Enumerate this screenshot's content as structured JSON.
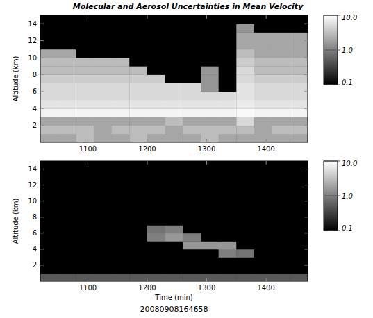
{
  "chart_data": [
    {
      "type": "heatmap",
      "title": "Molecular and Aerosol Uncertainties in Mean Velocity",
      "ylabel": "Altitude (km)",
      "xlim": [
        1020,
        1470
      ],
      "ylim": [
        0,
        15
      ],
      "xticks": [
        1100,
        1200,
        1300,
        1400
      ],
      "yticks": [
        2,
        4,
        6,
        8,
        10,
        12,
        14
      ],
      "x_edges": [
        1020,
        1050,
        1080,
        1110,
        1140,
        1170,
        1200,
        1230,
        1260,
        1290,
        1320,
        1350,
        1380,
        1410,
        1440,
        1470
      ],
      "y_edges": [
        0,
        1,
        2,
        3,
        4,
        5,
        6,
        7,
        8,
        9,
        10,
        11,
        12,
        13,
        14,
        15
      ],
      "cells": [
        [
          2,
          2,
          3,
          2,
          2,
          3,
          2,
          2,
          2,
          3,
          2,
          2,
          2,
          2,
          2
        ],
        [
          3,
          3,
          3,
          2,
          3,
          3,
          3,
          2,
          3,
          3,
          3,
          3,
          2,
          3,
          3
        ],
        [
          2,
          2,
          2,
          2,
          2,
          2,
          2,
          3,
          2,
          2,
          2,
          5,
          2,
          2,
          2
        ],
        [
          8,
          8,
          8,
          8,
          8,
          8,
          8,
          8,
          8,
          8,
          8,
          9,
          8,
          8,
          8
        ],
        [
          6,
          6,
          6,
          6,
          6,
          6,
          6,
          6,
          6,
          6,
          6,
          7,
          6,
          6,
          6
        ],
        [
          5,
          5,
          5,
          5,
          5,
          5,
          5,
          5,
          5,
          5,
          5,
          6,
          5,
          5,
          5
        ],
        [
          5,
          5,
          5,
          5,
          5,
          5,
          5,
          5,
          5,
          1.5,
          0.1,
          6,
          5,
          5,
          5
        ],
        [
          4,
          4,
          4,
          4,
          4,
          4,
          4,
          0.1,
          0.1,
          1.5,
          0.1,
          5,
          4,
          4,
          4
        ],
        [
          3,
          3,
          3,
          3,
          3,
          3,
          0.1,
          0.1,
          0.1,
          1.5,
          0.1,
          5,
          3,
          3,
          3
        ],
        [
          3,
          3,
          3,
          3,
          3,
          0.1,
          0.1,
          0.1,
          0.1,
          0.1,
          0.1,
          4,
          3,
          3,
          3
        ],
        [
          2,
          2,
          0.1,
          0.1,
          0.1,
          0.1,
          0.1,
          0.1,
          0.1,
          0.1,
          0.1,
          3,
          2,
          2,
          2
        ],
        [
          0.1,
          0.1,
          0.1,
          0.1,
          0.1,
          0.1,
          0.1,
          0.1,
          0.1,
          0.1,
          0.1,
          2,
          2,
          2,
          2
        ],
        [
          0.1,
          0.1,
          0.1,
          0.1,
          0.1,
          0.1,
          0.1,
          0.1,
          0.1,
          0.1,
          0.1,
          2,
          2,
          2,
          2
        ],
        [
          0.1,
          0.1,
          0.1,
          0.1,
          0.1,
          0.1,
          0.1,
          0.1,
          0.1,
          0.1,
          0.1,
          1.5,
          0.1,
          0.1,
          0.1
        ],
        [
          0.1,
          0.1,
          0.1,
          0.1,
          0.1,
          0.1,
          0.1,
          0.1,
          0.1,
          0.1,
          0.1,
          0.1,
          0.1,
          0.1,
          0.1
        ]
      ],
      "colorbar": {
        "range": [
          0.1,
          10
        ],
        "log": true,
        "ticks": [
          0.1,
          {
            "value": 1,
            "label": "1.0"
          },
          {
            "value": 10,
            "label": "10.0"
          }
        ]
      }
    },
    {
      "type": "heatmap",
      "ylabel": "Altitude (km)",
      "xlabel": "Time (min)",
      "annotation": "20080908164658",
      "xlim": [
        1020,
        1470
      ],
      "ylim": [
        0,
        15
      ],
      "xticks": [
        1100,
        1200,
        1300,
        1400
      ],
      "yticks": [
        2,
        4,
        6,
        8,
        10,
        12,
        14
      ],
      "x_edges": [
        1020,
        1050,
        1080,
        1110,
        1140,
        1170,
        1200,
        1230,
        1260,
        1290,
        1320,
        1350,
        1380,
        1410,
        1440,
        1470
      ],
      "y_edges": [
        0,
        1,
        2,
        3,
        4,
        5,
        6,
        7,
        8,
        9,
        10,
        11,
        12,
        13,
        14,
        15
      ],
      "cells": [
        [
          0.5,
          0.5,
          0.5,
          0.5,
          0.5,
          0.5,
          0.5,
          0.5,
          0.5,
          0.5,
          0.5,
          0.5,
          0.5,
          0.5,
          0.5
        ],
        [
          0.1,
          0.1,
          0.1,
          0.1,
          0.1,
          0.1,
          0.1,
          0.1,
          0.1,
          0.1,
          0.1,
          0.1,
          0.1,
          0.1,
          0.1
        ],
        [
          0.1,
          0.1,
          0.1,
          0.1,
          0.1,
          0.1,
          0.1,
          0.1,
          0.1,
          0.1,
          0.1,
          0.1,
          0.1,
          0.1,
          0.1
        ],
        [
          0.1,
          0.1,
          0.1,
          0.1,
          0.1,
          0.1,
          0.1,
          0.1,
          0.1,
          0.1,
          1,
          0.8,
          0.1,
          0.1,
          0.1
        ],
        [
          0.1,
          0.1,
          0.1,
          0.1,
          0.1,
          0.1,
          0.1,
          0.1,
          1.5,
          1.5,
          1.5,
          0.1,
          0.1,
          0.1,
          0.1
        ],
        [
          0.1,
          0.1,
          0.1,
          0.1,
          0.1,
          0.1,
          1,
          1.5,
          1,
          0.1,
          0.1,
          0.1,
          0.1,
          0.1,
          0.1
        ],
        [
          0.1,
          0.1,
          0.1,
          0.1,
          0.1,
          0.1,
          0.8,
          1,
          0.1,
          0.1,
          0.1,
          0.1,
          0.1,
          0.1,
          0.1
        ],
        [
          0.1,
          0.1,
          0.1,
          0.1,
          0.1,
          0.1,
          0.1,
          0.1,
          0.1,
          0.1,
          0.1,
          0.1,
          0.1,
          0.1,
          0.1
        ],
        [
          0.1,
          0.1,
          0.1,
          0.1,
          0.1,
          0.1,
          0.1,
          0.1,
          0.1,
          0.1,
          0.1,
          0.1,
          0.1,
          0.1,
          0.1
        ],
        [
          0.1,
          0.1,
          0.1,
          0.1,
          0.1,
          0.1,
          0.1,
          0.1,
          0.1,
          0.1,
          0.1,
          0.1,
          0.1,
          0.1,
          0.1
        ],
        [
          0.1,
          0.1,
          0.1,
          0.1,
          0.1,
          0.1,
          0.1,
          0.1,
          0.1,
          0.1,
          0.1,
          0.1,
          0.1,
          0.1,
          0.1
        ],
        [
          0.1,
          0.1,
          0.1,
          0.1,
          0.1,
          0.1,
          0.1,
          0.1,
          0.1,
          0.1,
          0.1,
          0.1,
          0.1,
          0.1,
          0.1
        ],
        [
          0.1,
          0.1,
          0.1,
          0.1,
          0.1,
          0.1,
          0.1,
          0.1,
          0.1,
          0.1,
          0.1,
          0.1,
          0.1,
          0.1,
          0.1
        ],
        [
          0.1,
          0.1,
          0.1,
          0.1,
          0.1,
          0.1,
          0.1,
          0.1,
          0.1,
          0.1,
          0.1,
          0.1,
          0.1,
          0.1,
          0.1
        ],
        [
          0.1,
          0.1,
          0.1,
          0.1,
          0.1,
          0.1,
          0.1,
          0.1,
          0.1,
          0.1,
          0.1,
          0.1,
          0.1,
          0.1,
          0.1
        ]
      ],
      "colorbar": {
        "range": [
          0.1,
          10
        ],
        "log": true,
        "ticks": [
          0.1,
          {
            "value": 1,
            "label": "1.0"
          },
          {
            "value": 10,
            "label": "10.0"
          }
        ]
      }
    }
  ]
}
